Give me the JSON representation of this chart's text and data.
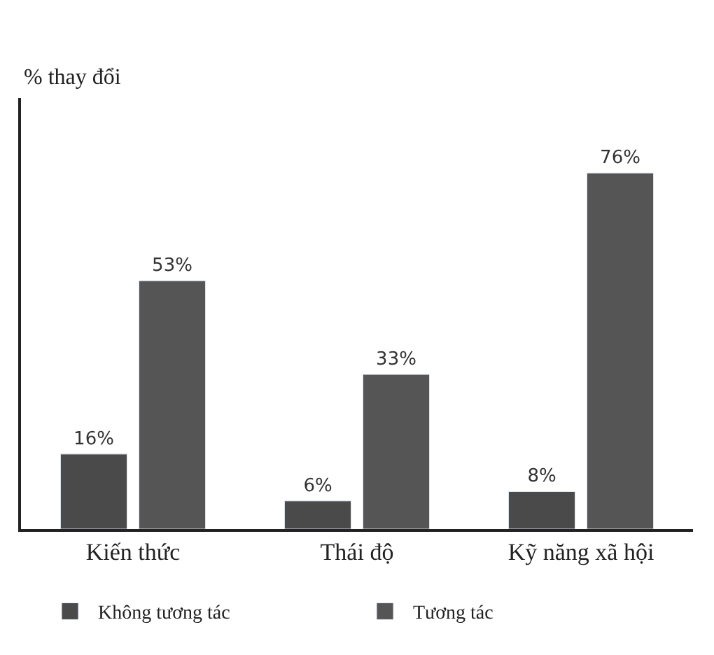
{
  "chart_data": {
    "type": "bar",
    "ylabel": "% thay đổi",
    "categories": [
      "Kiến thức",
      "Thái độ",
      "Kỹ năng xã hội"
    ],
    "series": [
      {
        "name": "Không tương tác",
        "color": "#4a4a4a",
        "values": [
          16,
          6,
          8
        ],
        "value_labels": [
          "16%",
          "6%",
          "8%"
        ]
      },
      {
        "name": "Tương tác",
        "color": "#555555",
        "values": [
          53,
          33,
          76
        ],
        "value_labels": [
          "53%",
          "33%",
          "76%"
        ]
      }
    ],
    "ylim": [
      0,
      92
    ],
    "legend": "bottom",
    "tick_labels": "x"
  }
}
